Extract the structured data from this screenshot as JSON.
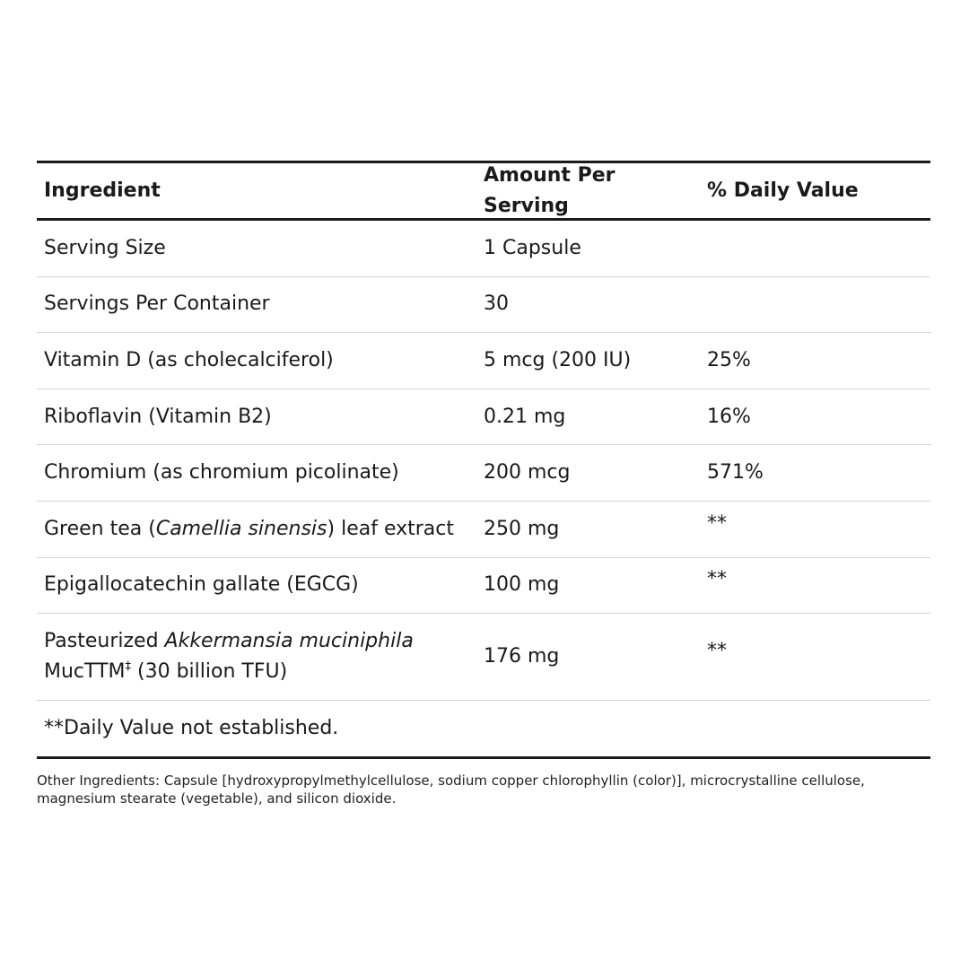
{
  "table": {
    "headers": {
      "ingredient": "Ingredient",
      "amount": "Amount Per Serving",
      "daily_value": "% Daily Value"
    },
    "rows": [
      {
        "ingredient": "Serving Size",
        "amount": "1 Capsule",
        "dv": ""
      },
      {
        "ingredient": "Servings Per Container",
        "amount": "30",
        "dv": ""
      },
      {
        "ingredient": "Vitamin D (as cholecalciferol)",
        "amount": "5 mcg (200 IU)",
        "dv": "25%"
      },
      {
        "ingredient": "Riboflavin (Vitamin B2)",
        "amount": "0.21 mg",
        "dv": "16%"
      },
      {
        "ingredient": "Chromium (as chromium picolinate)",
        "amount": "200 mcg",
        "dv": "571%"
      },
      {
        "ingredient_pre": "Green tea (",
        "ingredient_italic": "Camellia sinensis",
        "ingredient_post": ") leaf extract",
        "amount": "250 mg",
        "dv": "**"
      },
      {
        "ingredient": "Epigallocatechin gallate (EGCG)",
        "amount": "100 mg",
        "dv": "**"
      },
      {
        "ingredient_pre": "Pasteurized ",
        "ingredient_italic": "Akkermansia muciniphila",
        "ingredient_line2": "MucT",
        "ingredient_tm": "TM",
        "ingredient_dagger": "‡",
        "ingredient_post": " (30 billion TFU)",
        "amount": "176 mg",
        "dv": "**"
      }
    ],
    "footnote": "**Daily Value not established."
  },
  "other_ingredients": "Other Ingredients: Capsule [hydroxypropylmethylcellulose, sodium copper chlorophyllin (color)], microcrystalline cellulose, magnesium stearate (vegetable), and silicon dioxide."
}
